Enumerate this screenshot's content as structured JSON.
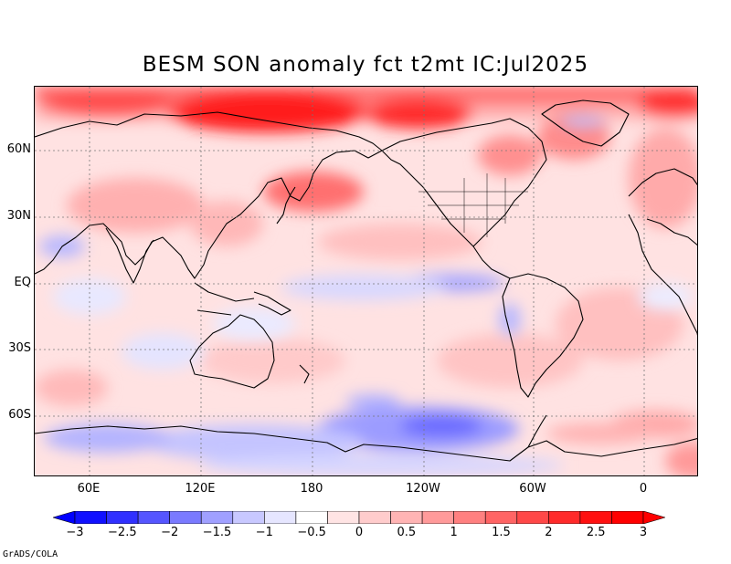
{
  "title": "BESM  SON anomaly fct t2mt IC:Jul2025",
  "lat_labels": [
    "60N",
    "30N",
    "EQ",
    "30S",
    "60S"
  ],
  "lon_labels": [
    "60E",
    "120E",
    "180",
    "120W",
    "60W",
    "0"
  ],
  "colorbar": {
    "labels": [
      "-3",
      "-2.5",
      "-2",
      "-1.5",
      "-1",
      "-0.5",
      "0",
      "0.5",
      "1",
      "1.5",
      "2",
      "2.5",
      "3"
    ],
    "colors": [
      "#1010ff",
      "#3030ff",
      "#5555ff",
      "#7a7aff",
      "#a0a0ff",
      "#c8c8ff",
      "#e6e6ff",
      "#ffffff",
      "#ffe4e4",
      "#ffcccc",
      "#ffb4b4",
      "#ff9a9a",
      "#ff8080",
      "#ff6464",
      "#ff4848",
      "#ff2a2a",
      "#ff1010",
      "#ff0000"
    ],
    "arrow_low": "#0000ff",
    "arrow_high": "#ff0000"
  },
  "credit": "GrADS/COLA"
}
